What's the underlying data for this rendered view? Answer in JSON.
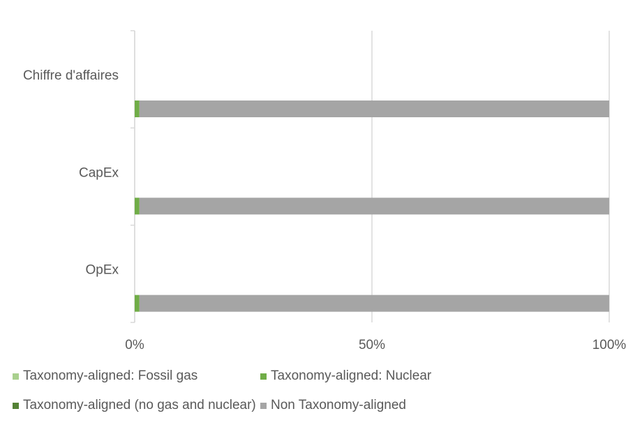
{
  "chart_data": {
    "type": "bar",
    "orientation": "horizontal",
    "stacked": true,
    "categories": [
      "Chiffre d'affaires",
      "CapEx",
      "OpEx"
    ],
    "series": [
      {
        "name": "Taxonomy-aligned: Fossil gas",
        "values": [
          0,
          0,
          0
        ],
        "color": "#a9d08e"
      },
      {
        "name": "Taxonomy-aligned: Nuclear",
        "values": [
          1,
          1,
          1
        ],
        "color": "#70ad47"
      },
      {
        "name": "Taxonomy-aligned (no gas and nuclear)",
        "values": [
          0,
          0,
          0
        ],
        "color": "#548235"
      },
      {
        "name": "Non Taxonomy-aligned",
        "values": [
          99,
          99,
          99
        ],
        "color": "#a5a5a5"
      }
    ],
    "x_ticks": [
      "0%",
      "50%",
      "100%"
    ],
    "xlim": [
      0,
      100
    ],
    "grid": true,
    "legend_position": "bottom"
  }
}
